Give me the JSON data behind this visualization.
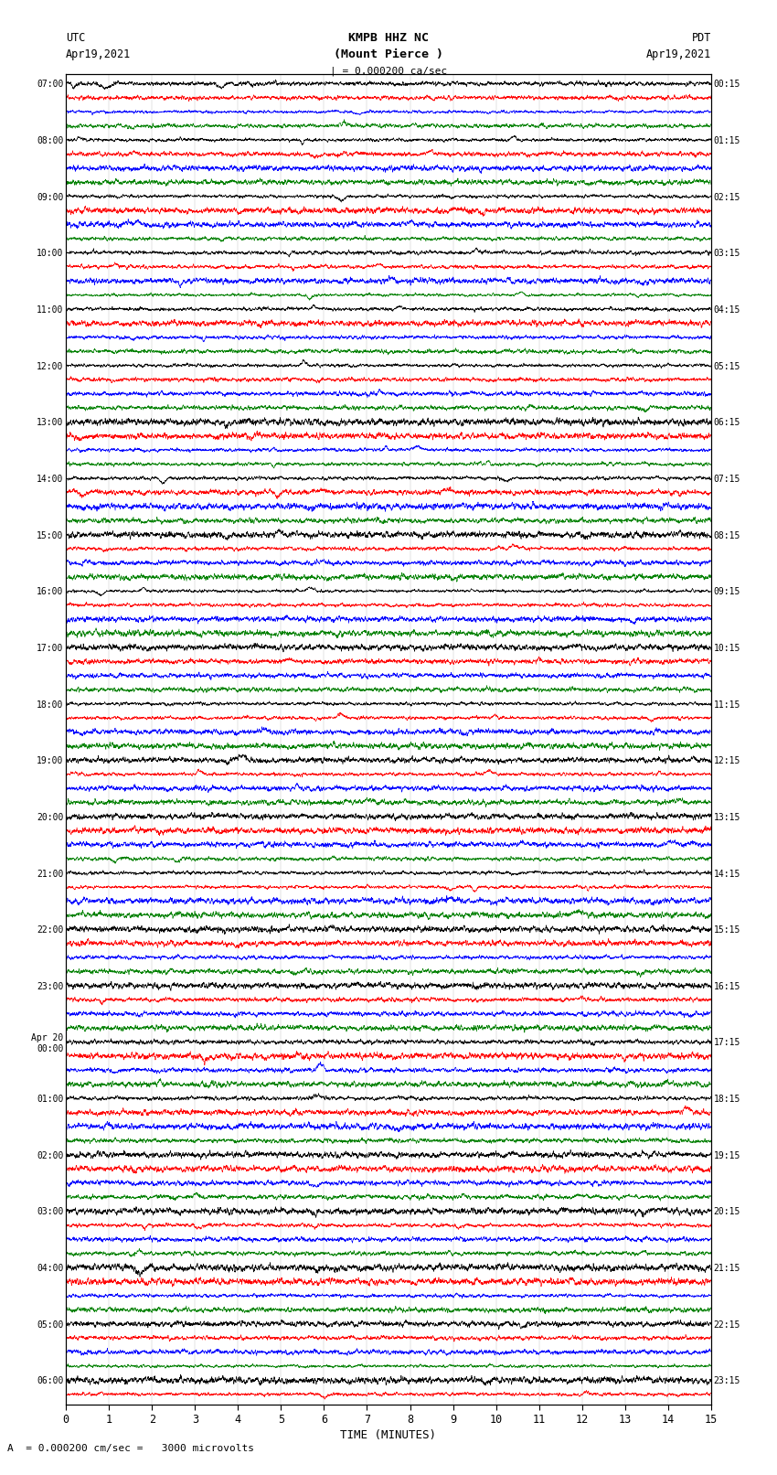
{
  "title_line1": "KMPB HHZ NC",
  "title_line2": "(Mount Pierce )",
  "label_utc": "UTC",
  "label_left_date": "Apr19,2021",
  "label_pdt": "PDT",
  "label_right_date": "Apr19,2021",
  "scale_annotation": "| = 0.000200 ca/sec",
  "xlabel": "TIME (MINUTES)",
  "bottom_annotation": "A  = 0.000200 cm/sec =   3000 microvolts",
  "xlim": [
    0,
    15
  ],
  "xticks": [
    0,
    1,
    2,
    3,
    4,
    5,
    6,
    7,
    8,
    9,
    10,
    11,
    12,
    13,
    14,
    15
  ],
  "colors": [
    "black",
    "red",
    "blue",
    "green"
  ],
  "background_color": "white",
  "left_times": [
    "07:00",
    "",
    "",
    "",
    "08:00",
    "",
    "",
    "",
    "09:00",
    "",
    "",
    "",
    "10:00",
    "",
    "",
    "",
    "11:00",
    "",
    "",
    "",
    "12:00",
    "",
    "",
    "",
    "13:00",
    "",
    "",
    "",
    "14:00",
    "",
    "",
    "",
    "15:00",
    "",
    "",
    "",
    "16:00",
    "",
    "",
    "",
    "17:00",
    "",
    "",
    "",
    "18:00",
    "",
    "",
    "",
    "19:00",
    "",
    "",
    "",
    "20:00",
    "",
    "",
    "",
    "21:00",
    "",
    "",
    "",
    "22:00",
    "",
    "",
    "",
    "23:00",
    "",
    "",
    "",
    "Apr 20\n00:00",
    "",
    "",
    "",
    "01:00",
    "",
    "",
    "",
    "02:00",
    "",
    "",
    "",
    "03:00",
    "",
    "",
    "",
    "04:00",
    "",
    "",
    "",
    "05:00",
    "",
    "",
    "",
    "06:00",
    ""
  ],
  "right_times": [
    "00:15",
    "",
    "",
    "",
    "01:15",
    "",
    "",
    "",
    "02:15",
    "",
    "",
    "",
    "03:15",
    "",
    "",
    "",
    "04:15",
    "",
    "",
    "",
    "05:15",
    "",
    "",
    "",
    "06:15",
    "",
    "",
    "",
    "07:15",
    "",
    "",
    "",
    "08:15",
    "",
    "",
    "",
    "09:15",
    "",
    "",
    "",
    "10:15",
    "",
    "",
    "",
    "11:15",
    "",
    "",
    "",
    "12:15",
    "",
    "",
    "",
    "13:15",
    "",
    "",
    "",
    "14:15",
    "",
    "",
    "",
    "15:15",
    "",
    "",
    "",
    "16:15",
    "",
    "",
    "",
    "17:15",
    "",
    "",
    "",
    "18:15",
    "",
    "",
    "",
    "19:15",
    "",
    "",
    "",
    "20:15",
    "",
    "",
    "",
    "21:15",
    "",
    "",
    "",
    "22:15",
    "",
    "",
    "",
    "23:15",
    ""
  ],
  "figsize": [
    8.5,
    16.13
  ],
  "dpi": 100,
  "amplitude": 0.38,
  "event_row_green": 48
}
